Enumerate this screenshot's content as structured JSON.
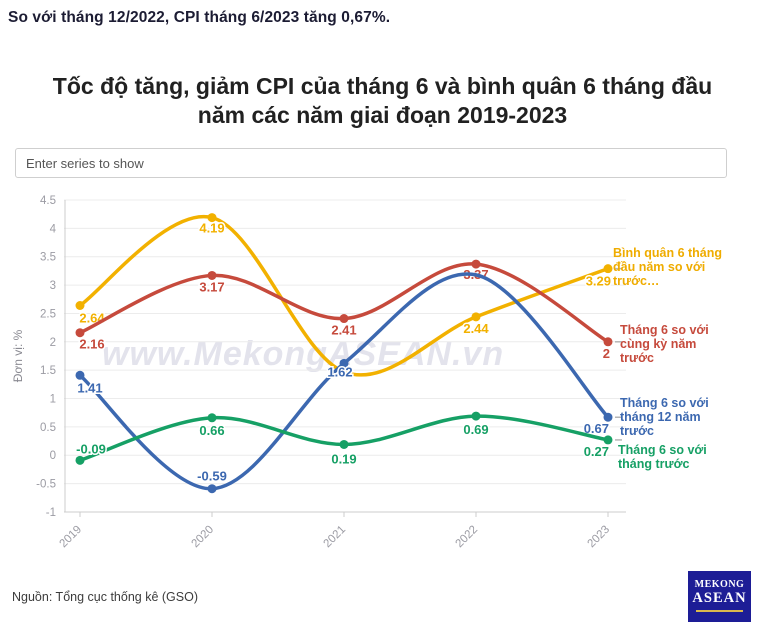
{
  "header": {
    "headline": "So với tháng 12/2022, CPI tháng 6/2023 tăng 0,67%."
  },
  "title": {
    "text": "Tốc độ tăng, giảm CPI của tháng 6 và bình quân 6 tháng đầu năm các năm giai đoạn 2019-2023"
  },
  "controls": {
    "series_filter_placeholder": "Enter series to show"
  },
  "chart_data": {
    "type": "line",
    "title": "Tốc độ tăng, giảm CPI của tháng 6 và bình quân 6 tháng đầu năm các năm giai đoạn 2019-2023",
    "ylabel": "Đơn vị: %",
    "xlabel": "",
    "categories": [
      "2019",
      "2020",
      "2021",
      "2022",
      "2023"
    ],
    "y_ticks": [
      4.5,
      4,
      3.5,
      3,
      2.5,
      2,
      1.5,
      1,
      0.5,
      0,
      -0.5,
      -1
    ],
    "ylim": [
      -1,
      4.5
    ],
    "grid": "horizontal",
    "legend_position": "right",
    "watermark": "www.MekongASEAN.vn",
    "colors": {
      "axis": "#cccccc",
      "gridline": "#ececec",
      "tick_text": "#9b9ba3",
      "connector": "#b5b5b5"
    },
    "series": [
      {
        "name": "Bình quân 6 tháng đầu năm so với trước…",
        "color": "#F2B100",
        "values": [
          2.64,
          4.19,
          1.47,
          2.44,
          3.29
        ],
        "point_labels": [
          "2.64",
          "4.19",
          "",
          "2.44",
          "3.29"
        ]
      },
      {
        "name": "Tháng 6 so với cùng kỳ năm trước",
        "color": "#C64A3C",
        "values": [
          2.16,
          3.17,
          2.41,
          3.37,
          2
        ],
        "point_labels": [
          "2.16",
          "3.17",
          "2.41",
          "3.37",
          "2"
        ]
      },
      {
        "name": "Tháng 6 so với tháng 12 năm trước",
        "color": "#3C68B0",
        "values": [
          1.41,
          -0.59,
          1.62,
          3.18,
          0.67
        ],
        "point_labels": [
          "1.41",
          "-0.59",
          "1.62",
          "",
          "0.67"
        ]
      },
      {
        "name": "Tháng 6 so với tháng trước",
        "color": "#16A065",
        "values": [
          -0.09,
          0.66,
          0.19,
          0.69,
          0.27
        ],
        "point_labels": [
          "-0.09",
          "0.66",
          "0.19",
          "0.69",
          "0.27"
        ]
      }
    ]
  },
  "footer": {
    "source": "Nguồn: Tổng cục thống kê (GSO)"
  },
  "logo": {
    "line1": "MEKONG",
    "line2": "ASEAN"
  }
}
